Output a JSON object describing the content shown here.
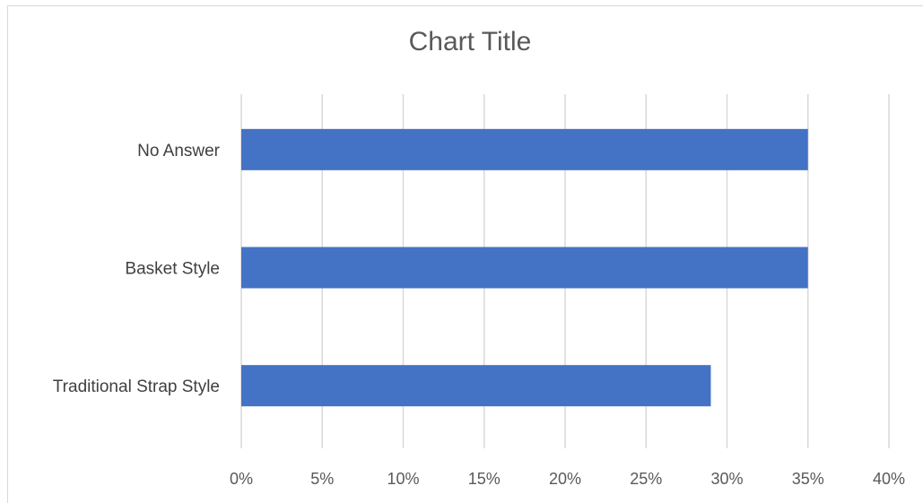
{
  "chart_data": {
    "type": "bar",
    "orientation": "horizontal",
    "title": "Chart Title",
    "categories": [
      "No Answer",
      "Basket Style",
      "Traditional Strap Style"
    ],
    "values": [
      35,
      35,
      29
    ],
    "value_unit": "%",
    "xlim": [
      0,
      40
    ],
    "xticks": [
      "0%",
      "5%",
      "10%",
      "15%",
      "20%",
      "25%",
      "30%",
      "35%",
      "40%"
    ],
    "grid": true,
    "legend": "none",
    "bar_color": "#4472C4",
    "grid_color": "#d9d9d9"
  }
}
